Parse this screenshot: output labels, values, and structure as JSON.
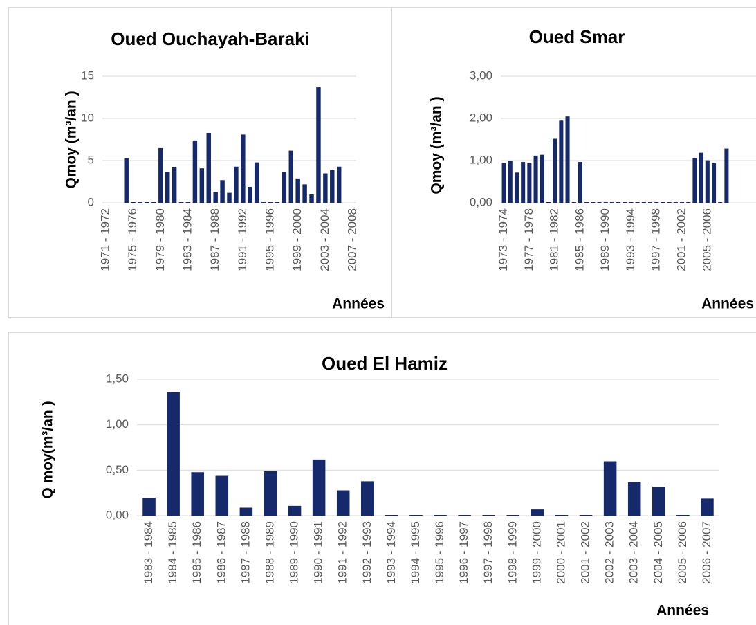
{
  "chart_data": [
    {
      "type": "bar",
      "title": "Oued Ouchayah-Baraki",
      "x_label": "Années",
      "y_label": "Qmoy (m³/an )",
      "color": "#15296b",
      "categories": [
        "1971 - 1972",
        null,
        null,
        null,
        "1975 - 1976",
        null,
        null,
        null,
        "1979 - 1980",
        null,
        null,
        null,
        "1983 - 1984",
        null,
        null,
        null,
        "1987 - 1988",
        null,
        null,
        null,
        "1991 - 1992",
        null,
        null,
        null,
        "1995 - 1996",
        null,
        null,
        null,
        "1999 - 2000",
        null,
        null,
        null,
        "2003 - 2004",
        null,
        null,
        null,
        "2007 - 2008"
      ],
      "values": [
        null,
        null,
        null,
        5.2,
        0,
        0,
        0,
        0,
        6.4,
        3.6,
        4.1,
        0,
        0,
        7.3,
        4.0,
        8.2,
        1.2,
        2.6,
        1.1,
        4.2,
        8.0,
        1.8,
        4.7,
        0,
        0,
        0,
        3.6,
        6.1,
        2.8,
        2.1,
        0.9,
        13.6,
        3.4,
        3.8,
        4.2,
        null,
        null
      ],
      "ylim": [
        0,
        15
      ],
      "yticks": [
        0,
        5,
        10,
        15
      ],
      "grid": true
    },
    {
      "type": "bar",
      "title": "Oued Smar",
      "x_label": "Années",
      "y_label": "Qmoy (m³/an )",
      "color": "#15296b",
      "categories": [
        "1973 - 1974",
        null,
        null,
        null,
        "1977 - 1978",
        null,
        null,
        null,
        "1981 - 1982",
        null,
        null,
        null,
        "1985 - 1986",
        null,
        null,
        null,
        "1989 - 1990",
        null,
        null,
        null,
        "1993 - 1994",
        null,
        null,
        null,
        "1997 - 1998",
        null,
        null,
        null,
        "2001 - 2002",
        null,
        null,
        null,
        "2005 - 2006",
        null,
        null,
        null
      ],
      "values": [
        0.92,
        0.98,
        0.7,
        0.95,
        0.92,
        1.1,
        1.12,
        0,
        1.5,
        1.93,
        2.03,
        0,
        0.95,
        0,
        0,
        0,
        0,
        0,
        0,
        0,
        0,
        0,
        0,
        0,
        0,
        0,
        0,
        0,
        0,
        0,
        1.05,
        1.17,
        0.99,
        0.92,
        0,
        1.27
      ],
      "ylim": [
        0,
        3
      ],
      "yticks": [
        {
          "value": 0,
          "label": "0,00"
        },
        {
          "value": 1,
          "label": "1,00"
        },
        {
          "value": 2,
          "label": "2,00"
        },
        {
          "value": 3,
          "label": "3,00"
        }
      ],
      "grid": true
    },
    {
      "type": "bar",
      "title": "Oued El Hamiz",
      "x_label": "Années",
      "y_label": "Q moy(m³/an )",
      "color": "#15296b",
      "categories": [
        "1983 - 1984",
        "1984 - 1985",
        "1985 - 1986",
        "1986 - 1987",
        "1987 - 1988",
        "1988 - 1989",
        "1989 - 1990",
        "1990 - 1991",
        "1991 - 1992",
        "1992 - 1993",
        "1993 - 1994",
        "1994 - 1995",
        "1995 - 1996",
        "1996 - 1997",
        "1997 - 1998",
        "1998 - 1999",
        "1999 - 2000",
        "2000 - 2001",
        "2001 - 2002",
        "2002 - 2003",
        "2003 - 2004",
        "2004 - 2005",
        "2005 - 2006",
        "2006 - 2007"
      ],
      "values": [
        0.19,
        1.35,
        0.47,
        0.43,
        0.08,
        0.48,
        0.1,
        0.61,
        0.27,
        0.37,
        0,
        0,
        0,
        0,
        0,
        0,
        0.06,
        0,
        0,
        0.59,
        0.36,
        0.31,
        0,
        0.18
      ],
      "ylim": [
        0,
        1.5
      ],
      "yticks": [
        {
          "value": 0,
          "label": "0,00"
        },
        {
          "value": 0.5,
          "label": "0,50"
        },
        {
          "value": 1,
          "label": "1,00"
        },
        {
          "value": 1.5,
          "label": "1,50"
        }
      ],
      "grid": true
    }
  ]
}
